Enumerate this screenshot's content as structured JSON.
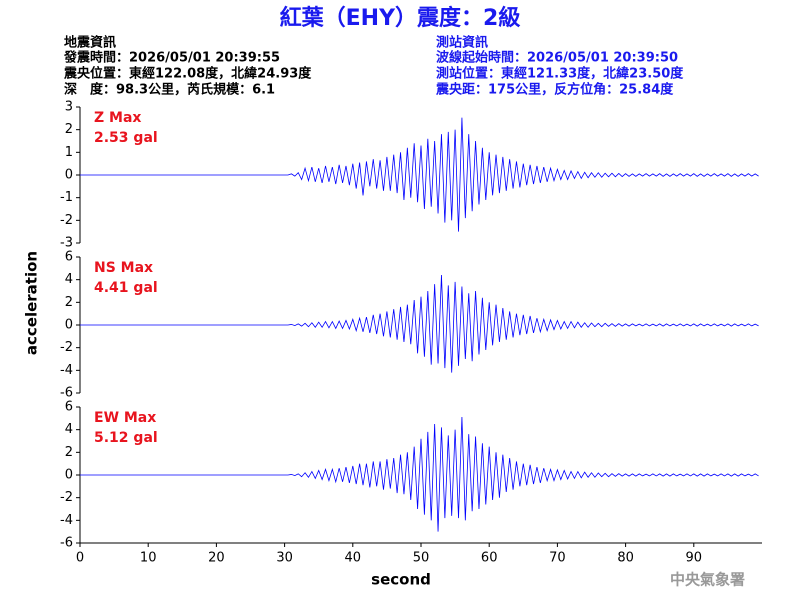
{
  "title": "紅葉（EHY）震度：2級",
  "earthquake_info": {
    "heading": "地震資訊",
    "lines": [
      "發震時間：2026/05/01 20:39:55",
      "震央位置：東經122.08度，北緯24.93度",
      "深　度：98.3公里，芮氏規模：6.1"
    ]
  },
  "station_info": {
    "heading": "測站資訊",
    "lines": [
      "波線起始時間：2026/05/01 20:39:50",
      "測站位置：東經121.33度，北緯23.50度",
      "震央距：175公里，反方位角：25.84度"
    ]
  },
  "watermark": "中央氣象署",
  "chart_data": [
    {
      "type": "line",
      "annotation": [
        "Z Max",
        "2.53 gal"
      ],
      "xlim": [
        0,
        100
      ],
      "ylim": [
        -3,
        3
      ],
      "yticks": [
        -3,
        -2,
        -1,
        0,
        1,
        2,
        3
      ],
      "x": [
        0,
        30,
        30.5,
        31,
        31.5,
        32,
        32.5,
        33,
        33.5,
        34,
        34.5,
        35,
        35.5,
        36,
        36.5,
        37,
        37.5,
        38,
        38.5,
        39,
        39.5,
        40,
        40.5,
        41,
        41.5,
        42,
        42.5,
        43,
        43.5,
        44,
        44.5,
        45,
        45.5,
        46,
        46.5,
        47,
        47.5,
        48,
        48.5,
        49,
        49.5,
        50,
        50.5,
        51,
        51.5,
        52,
        52.5,
        53,
        53.5,
        54,
        54.5,
        55,
        55.5,
        56,
        56.5,
        57,
        57.5,
        58,
        58.5,
        59,
        59.5,
        60,
        60.5,
        61,
        61.5,
        62,
        62.5,
        63,
        63.5,
        64,
        64.5,
        65,
        65.5,
        66,
        66.5,
        67,
        67.5,
        68,
        68.5,
        69,
        69.5,
        70,
        70.5,
        71,
        71.5,
        72,
        72.5,
        73,
        73.5,
        74,
        74.5,
        75,
        75.5,
        76,
        76.5,
        77,
        77.5,
        78,
        78.5,
        79,
        79.5,
        80,
        80.5,
        81,
        81.5,
        82,
        82.5,
        83,
        83.5,
        84,
        84.5,
        85,
        85.5,
        86,
        86.5,
        87,
        87.5,
        88,
        88.5,
        89,
        89.5,
        90,
        90.5,
        91,
        91.5,
        92,
        92.5,
        93,
        93.5,
        94,
        94.5,
        95,
        95.5,
        96,
        96.5,
        97,
        97.5,
        98,
        98.5,
        99,
        99.5
      ],
      "series": [
        {
          "color": "#0000ff",
          "values": [
            0,
            0,
            0,
            0.05,
            -0.05,
            0.1,
            -0.2,
            0.3,
            -0.25,
            0.35,
            -0.3,
            0.3,
            -0.35,
            0.4,
            -0.3,
            0.35,
            -0.4,
            0.45,
            -0.35,
            0.4,
            -0.45,
            0.5,
            -0.6,
            0.55,
            -0.9,
            0.6,
            -0.5,
            0.7,
            -0.6,
            0.65,
            -0.7,
            0.8,
            -0.7,
            0.9,
            -0.8,
            1.0,
            -1.1,
            1.2,
            -1.0,
            1.4,
            -1.2,
            1.3,
            -1.5,
            1.6,
            -1.4,
            1.5,
            -1.7,
            1.8,
            -2.1,
            1.9,
            -2.0,
            2.0,
            -2.5,
            2.53,
            -1.9,
            1.8,
            -1.6,
            1.5,
            -1.3,
            1.2,
            -1.1,
            1.0,
            -0.9,
            0.9,
            -0.8,
            0.8,
            -0.7,
            0.7,
            -0.6,
            0.6,
            -0.55,
            0.5,
            -0.45,
            0.45,
            -0.4,
            0.4,
            -0.35,
            0.35,
            -0.3,
            0.3,
            -0.25,
            0.25,
            -0.2,
            0.2,
            -0.2,
            0.18,
            -0.15,
            0.15,
            -0.15,
            0.12,
            -0.12,
            0.1,
            -0.1,
            0.1,
            -0.1,
            0.08,
            -0.08,
            0.08,
            -0.08,
            0.07,
            -0.07,
            0.06,
            -0.06,
            0.05,
            -0.06,
            0.05,
            -0.05,
            0.06,
            -0.05,
            0.05,
            -0.05,
            0.06,
            -0.06,
            0.05,
            -0.06,
            0.05,
            -0.05,
            0.06,
            -0.05,
            0.05,
            -0.05,
            0.06,
            -0.06,
            0.05,
            -0.06,
            0.05,
            -0.05,
            0.06,
            -0.05,
            0.05,
            -0.05,
            0.06,
            -0.06,
            0.05,
            -0.06,
            0.05,
            -0.05,
            0.06,
            -0.05,
            0.05,
            -0.05
          ]
        }
      ]
    },
    {
      "type": "line",
      "annotation": [
        "NS Max",
        "4.41 gal"
      ],
      "ylabel": "acceleration",
      "xlim": [
        0,
        100
      ],
      "ylim": [
        -6,
        6
      ],
      "yticks": [
        -6,
        -4,
        -2,
        0,
        2,
        4,
        6
      ],
      "x": [
        0,
        30,
        30.5,
        31,
        31.5,
        32,
        32.5,
        33,
        33.5,
        34,
        34.5,
        35,
        35.5,
        36,
        36.5,
        37,
        37.5,
        38,
        38.5,
        39,
        39.5,
        40,
        40.5,
        41,
        41.5,
        42,
        42.5,
        43,
        43.5,
        44,
        44.5,
        45,
        45.5,
        46,
        46.5,
        47,
        47.5,
        48,
        48.5,
        49,
        49.5,
        50,
        50.5,
        51,
        51.5,
        52,
        52.5,
        53,
        53.5,
        54,
        54.5,
        55,
        55.5,
        56,
        56.5,
        57,
        57.5,
        58,
        58.5,
        59,
        59.5,
        60,
        60.5,
        61,
        61.5,
        62,
        62.5,
        63,
        63.5,
        64,
        64.5,
        65,
        65.5,
        66,
        66.5,
        67,
        67.5,
        68,
        68.5,
        69,
        69.5,
        70,
        70.5,
        71,
        71.5,
        72,
        72.5,
        73,
        73.5,
        74,
        74.5,
        75,
        75.5,
        76,
        76.5,
        77,
        77.5,
        78,
        78.5,
        79,
        79.5,
        80,
        80.5,
        81,
        81.5,
        82,
        82.5,
        83,
        83.5,
        84,
        84.5,
        85,
        85.5,
        86,
        86.5,
        87,
        87.5,
        88,
        88.5,
        89,
        89.5,
        90,
        90.5,
        91,
        91.5,
        92,
        92.5,
        93,
        93.5,
        94,
        94.5,
        95,
        95.5,
        96,
        96.5,
        97,
        97.5,
        98,
        98.5,
        99,
        99.5
      ],
      "series": [
        {
          "color": "#0000ff",
          "values": [
            0,
            0,
            0,
            0.05,
            -0.05,
            0.1,
            -0.1,
            0.15,
            -0.15,
            0.2,
            -0.2,
            0.25,
            -0.2,
            0.3,
            -0.25,
            0.3,
            -0.3,
            0.35,
            -0.3,
            0.4,
            -0.35,
            0.5,
            -0.5,
            0.6,
            -0.6,
            0.7,
            -0.7,
            0.9,
            -0.8,
            1.0,
            -1.0,
            1.2,
            -1.1,
            1.4,
            -1.3,
            1.6,
            -1.5,
            1.8,
            -1.7,
            2.2,
            -2.5,
            2.5,
            -2.8,
            3.0,
            -3.5,
            3.6,
            -3.4,
            4.41,
            -3.8,
            3.5,
            -4.2,
            3.8,
            -3.6,
            3.4,
            -3.0,
            2.8,
            -3.2,
            3.0,
            -2.6,
            2.4,
            -2.2,
            2.0,
            -1.8,
            1.8,
            -1.5,
            1.5,
            -1.3,
            1.2,
            -1.1,
            1.0,
            -0.9,
            0.9,
            -0.8,
            0.8,
            -0.7,
            0.6,
            -0.6,
            0.5,
            -0.5,
            0.45,
            -0.4,
            0.4,
            -0.35,
            0.3,
            -0.3,
            0.3,
            -0.25,
            0.25,
            -0.2,
            0.2,
            -0.2,
            0.18,
            -0.15,
            0.15,
            -0.15,
            0.15,
            -0.12,
            0.12,
            -0.12,
            0.12,
            -0.1,
            0.1,
            -0.1,
            0.1,
            -0.08,
            0.08,
            -0.08,
            0.1,
            -0.08,
            0.08,
            -0.08,
            0.1,
            -0.1,
            0.1,
            -0.08,
            0.08,
            -0.08,
            0.1,
            -0.08,
            0.08,
            -0.08,
            0.1,
            -0.1,
            0.1,
            -0.08,
            0.08,
            -0.08,
            0.1,
            -0.08,
            0.08,
            -0.08,
            0.1,
            -0.1,
            0.1,
            -0.08,
            0.08,
            -0.08,
            0.1,
            -0.08,
            0.08,
            -0.08
          ]
        }
      ]
    },
    {
      "type": "line",
      "annotation": [
        "EW Max",
        "5.12 gal"
      ],
      "xlabel": "second",
      "xlim": [
        0,
        100
      ],
      "xticks": [
        0,
        10,
        20,
        30,
        40,
        50,
        60,
        70,
        80,
        90
      ],
      "ylim": [
        -6,
        6
      ],
      "yticks": [
        -6,
        -4,
        -2,
        0,
        2,
        4,
        6
      ],
      "x": [
        0,
        30,
        30.5,
        31,
        31.5,
        32,
        32.5,
        33,
        33.5,
        34,
        34.5,
        35,
        35.5,
        36,
        36.5,
        37,
        37.5,
        38,
        38.5,
        39,
        39.5,
        40,
        40.5,
        41,
        41.5,
        42,
        42.5,
        43,
        43.5,
        44,
        44.5,
        45,
        45.5,
        46,
        46.5,
        47,
        47.5,
        48,
        48.5,
        49,
        49.5,
        50,
        50.5,
        51,
        51.5,
        52,
        52.5,
        53,
        53.5,
        54,
        54.5,
        55,
        55.5,
        56,
        56.5,
        57,
        57.5,
        58,
        58.5,
        59,
        59.5,
        60,
        60.5,
        61,
        61.5,
        62,
        62.5,
        63,
        63.5,
        64,
        64.5,
        65,
        65.5,
        66,
        66.5,
        67,
        67.5,
        68,
        68.5,
        69,
        69.5,
        70,
        70.5,
        71,
        71.5,
        72,
        72.5,
        73,
        73.5,
        74,
        74.5,
        75,
        75.5,
        76,
        76.5,
        77,
        77.5,
        78,
        78.5,
        79,
        79.5,
        80,
        80.5,
        81,
        81.5,
        82,
        82.5,
        83,
        83.5,
        84,
        84.5,
        85,
        85.5,
        86,
        86.5,
        87,
        87.5,
        88,
        88.5,
        89,
        89.5,
        90,
        90.5,
        91,
        91.5,
        92,
        92.5,
        93,
        93.5,
        94,
        94.5,
        95,
        95.5,
        96,
        96.5,
        97,
        97.5,
        98,
        98.5,
        99,
        99.5
      ],
      "series": [
        {
          "color": "#0000ff",
          "values": [
            0,
            0,
            0,
            0.05,
            -0.05,
            0.1,
            -0.15,
            0.2,
            -0.2,
            0.3,
            -0.3,
            0.4,
            -0.4,
            0.5,
            -0.5,
            0.5,
            -0.6,
            0.6,
            -0.6,
            0.7,
            -0.7,
            0.8,
            -0.8,
            1.0,
            -0.9,
            1.0,
            -1.1,
            1.2,
            -1.0,
            1.2,
            -1.3,
            1.4,
            -1.2,
            1.5,
            -1.6,
            1.8,
            -1.7,
            2.0,
            -2.2,
            2.5,
            -3.0,
            3.2,
            -3.5,
            3.8,
            -4.0,
            4.5,
            -5.0,
            4.2,
            -3.8,
            3.5,
            -3.6,
            4.0,
            -3.8,
            5.12,
            -4.0,
            3.6,
            -3.2,
            3.4,
            -3.0,
            2.8,
            -2.6,
            2.5,
            -2.2,
            2.0,
            -2.0,
            1.8,
            -1.5,
            1.5,
            -1.3,
            1.2,
            -1.0,
            1.0,
            -0.9,
            0.9,
            -0.8,
            0.7,
            -0.7,
            0.6,
            -0.5,
            0.5,
            -0.5,
            0.45,
            -0.4,
            0.4,
            -0.35,
            0.3,
            -0.3,
            0.3,
            -0.25,
            0.25,
            -0.2,
            0.2,
            -0.2,
            0.18,
            -0.15,
            0.15,
            -0.15,
            0.12,
            -0.12,
            0.12,
            -0.1,
            0.1,
            -0.1,
            0.1,
            -0.1,
            0.1,
            -0.08,
            0.08,
            -0.08,
            0.1,
            -0.08,
            0.1,
            -0.1,
            0.1,
            -0.1,
            0.1,
            -0.08,
            0.08,
            -0.08,
            0.1,
            -0.08,
            0.1,
            -0.1,
            0.1,
            -0.1,
            0.1,
            -0.08,
            0.08,
            -0.08,
            0.1,
            -0.08,
            0.1,
            -0.1,
            0.1,
            -0.1,
            0.1,
            -0.08,
            0.08,
            -0.08,
            0.1,
            -0.08
          ]
        }
      ]
    }
  ]
}
